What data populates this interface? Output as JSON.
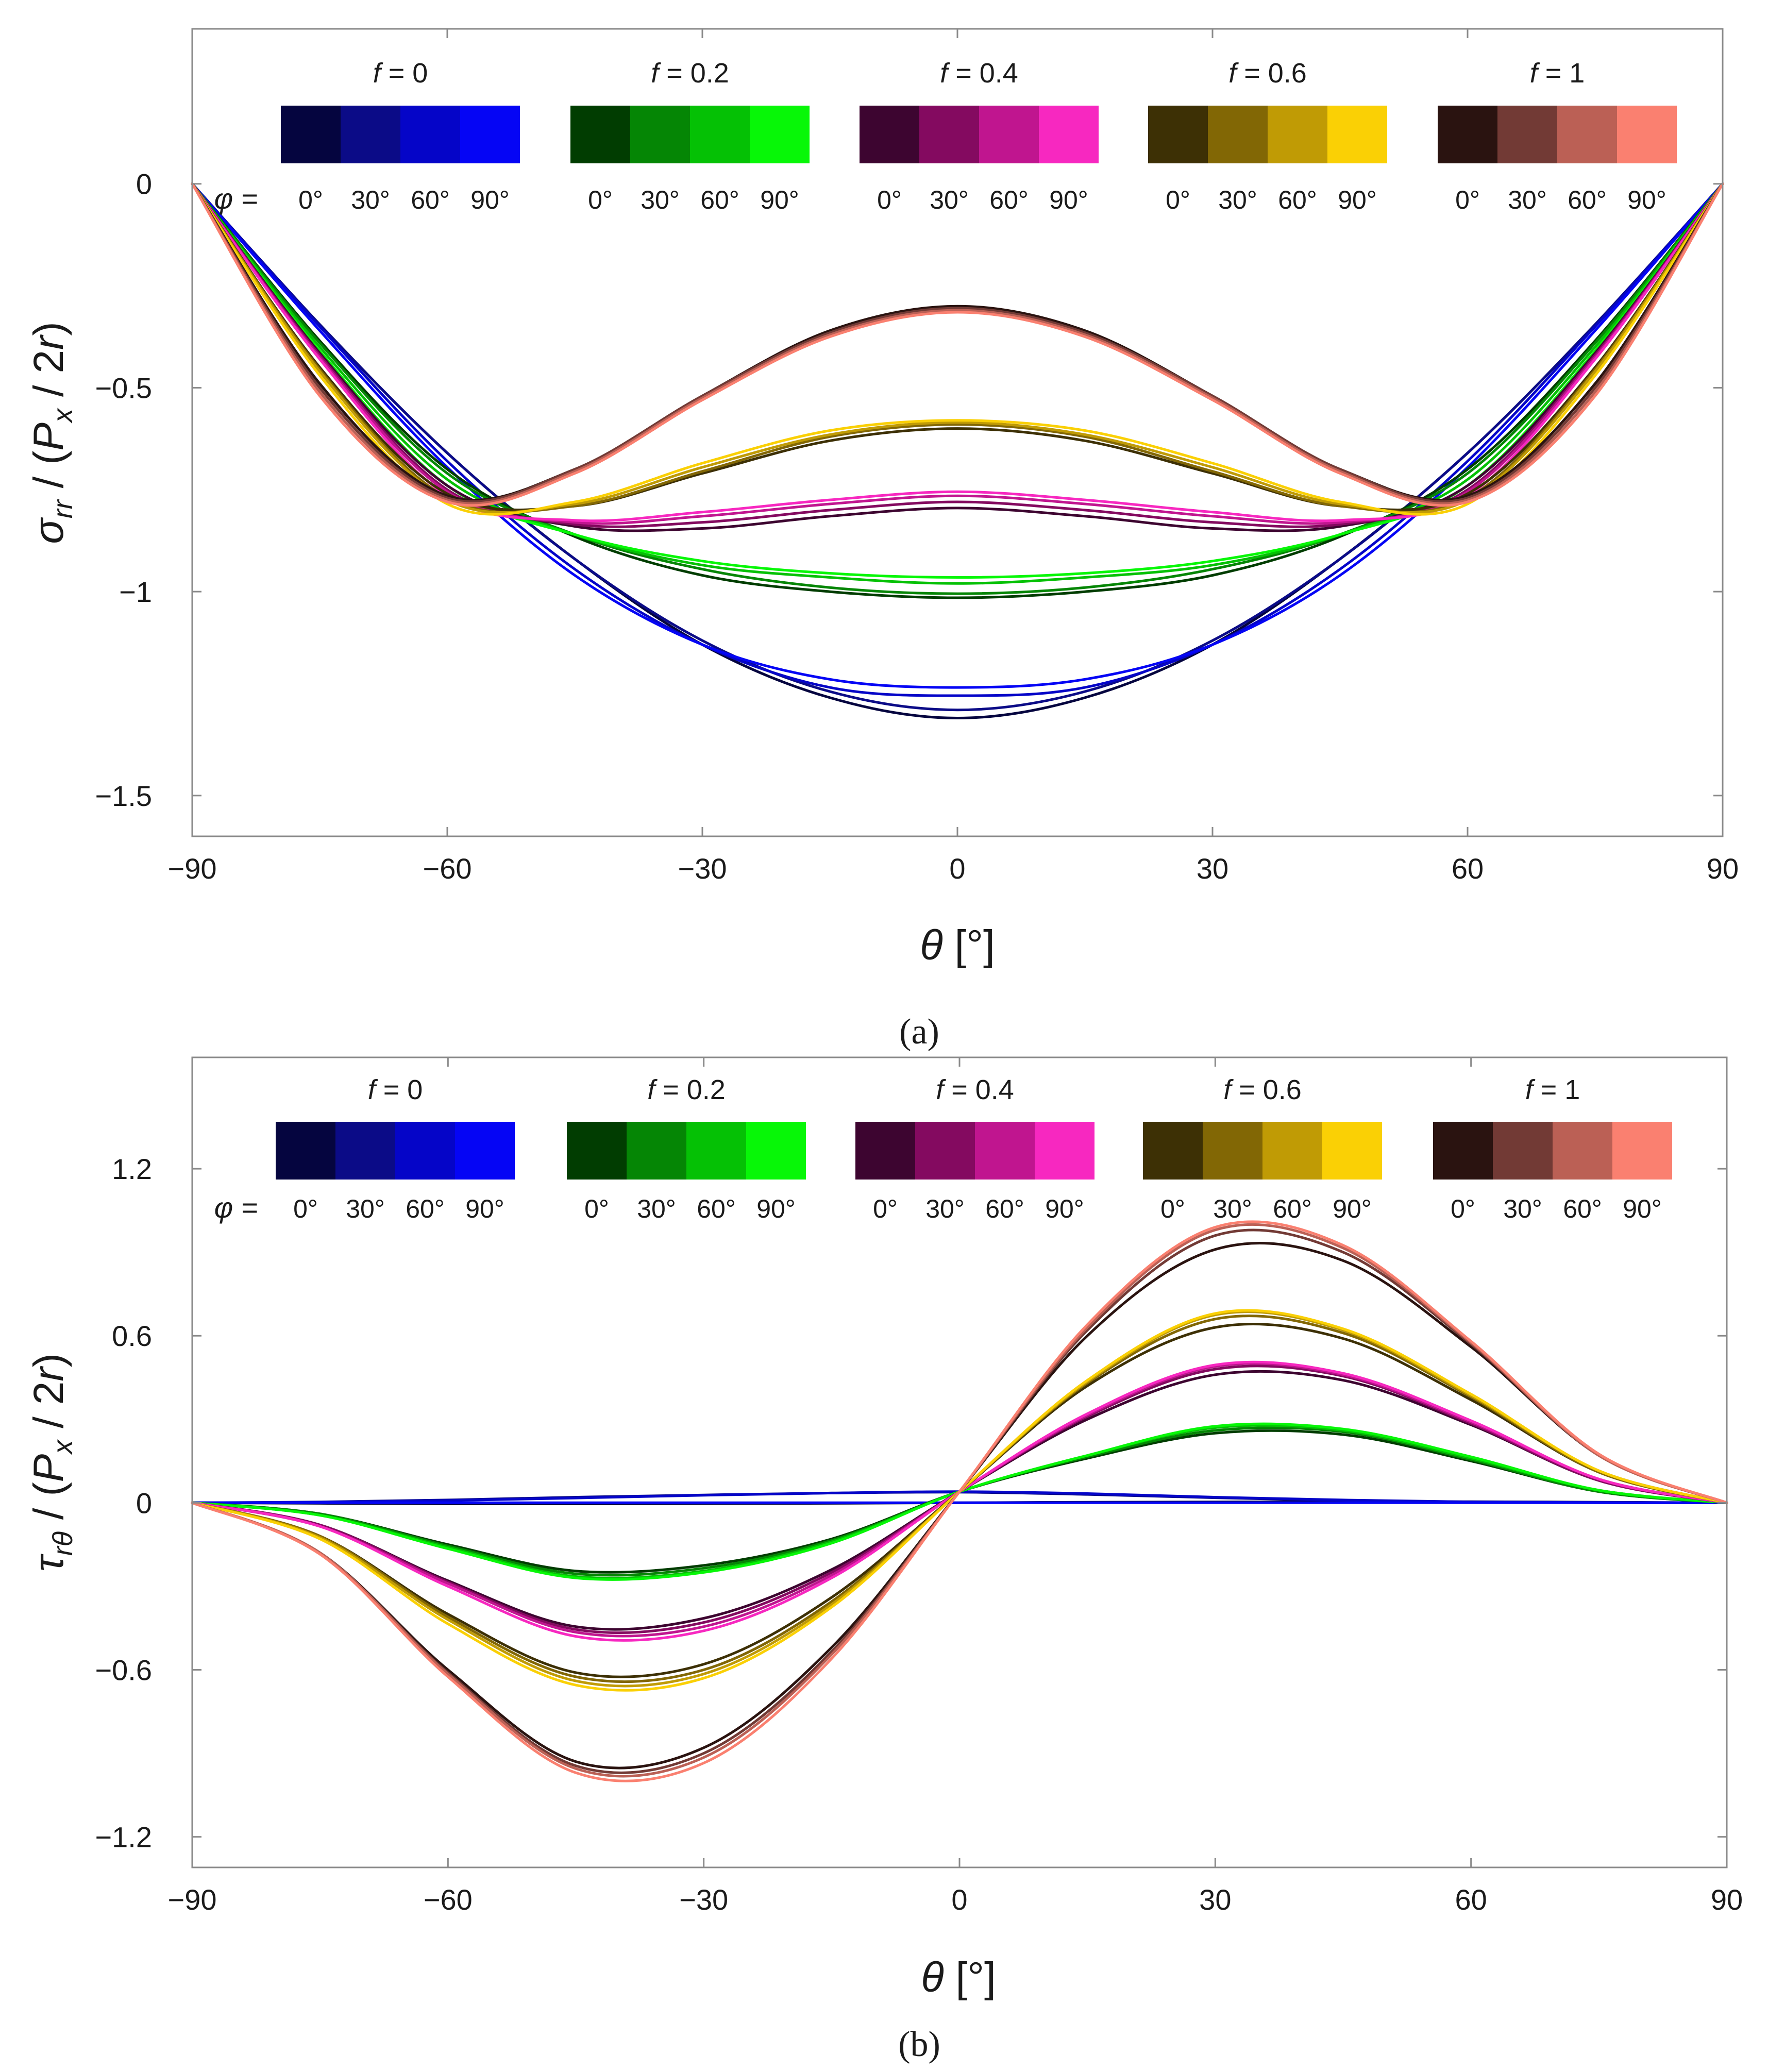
{
  "chart_data": [
    {
      "type": "line",
      "panel_label": "(a)",
      "xlabel": "θ [°]",
      "ylabel": "σ_rr / (P_x / 2r)",
      "xlim": [
        -90,
        90
      ],
      "ylim": [
        -1.6,
        0.38
      ],
      "xticks": [
        -90,
        -60,
        -30,
        0,
        30,
        60,
        90
      ],
      "xtick_labels": [
        "−90",
        "−60",
        "−30",
        "0",
        "30",
        "60",
        "90"
      ],
      "yticks": [
        0,
        -0.5,
        -1,
        -1.5
      ],
      "ytick_labels": [
        "0",
        "−0.5",
        "−1",
        "−1.5"
      ],
      "legend": {
        "phi_prefix": "φ =",
        "groups": [
          {
            "label": "f = 0",
            "colors": [
              "#05053f",
              "#0b0b87",
              "#0505c8",
              "#0505f5"
            ],
            "phi_labels": [
              "0°",
              "30°",
              "60°",
              "90°"
            ]
          },
          {
            "label": "f = 0.2",
            "colors": [
              "#013d01",
              "#058605",
              "#05c105",
              "#07f707"
            ],
            "phi_labels": [
              "0°",
              "30°",
              "60°",
              "90°"
            ]
          },
          {
            "label": "f = 0.4",
            "colors": [
              "#3d0530",
              "#840a60",
              "#c0158f",
              "#f728c0"
            ],
            "phi_labels": [
              "0°",
              "30°",
              "60°",
              "90°"
            ]
          },
          {
            "label": "f = 0.6",
            "colors": [
              "#3d3005",
              "#826705",
              "#c09b05",
              "#fad005"
            ],
            "phi_labels": [
              "0°",
              "30°",
              "60°",
              "90°"
            ]
          },
          {
            "label": "f = 1",
            "colors": [
              "#2a1310",
              "#723a35",
              "#bb6055",
              "#fa8070"
            ],
            "phi_labels": [
              "0°",
              "30°",
              "60°",
              "90°"
            ]
          }
        ]
      },
      "series": [
        {
          "name": "f=0, φ=0°",
          "color": "#05053f",
          "values": [
            0,
            -0.345,
            -0.66,
            -0.92,
            -1.13,
            -1.26,
            -1.31,
            -1.26,
            -1.13,
            -0.92,
            -0.66,
            -0.345,
            0
          ]
        },
        {
          "name": "f=0, φ=30°",
          "color": "#0b0b87",
          "values": [
            0,
            -0.345,
            -0.66,
            -0.92,
            -1.12,
            -1.245,
            -1.29,
            -1.245,
            -1.12,
            -0.92,
            -0.66,
            -0.345,
            0
          ]
        },
        {
          "name": "f=0, φ=60°",
          "color": "#0505c8",
          "values": [
            0,
            -0.35,
            -0.68,
            -0.945,
            -1.13,
            -1.235,
            -1.255,
            -1.235,
            -1.13,
            -0.945,
            -0.68,
            -0.35,
            0
          ]
        },
        {
          "name": "f=0, φ=90°",
          "color": "#0505f5",
          "values": [
            0,
            -0.36,
            -0.695,
            -0.96,
            -1.13,
            -1.215,
            -1.235,
            -1.215,
            -1.13,
            -0.96,
            -0.695,
            -0.36,
            0
          ]
        },
        {
          "name": "f=0.2, φ=0°",
          "color": "#013d01",
          "values": [
            0,
            -0.385,
            -0.7,
            -0.865,
            -0.96,
            -1.0,
            -1.015,
            -1.0,
            -0.96,
            -0.865,
            -0.7,
            -0.385,
            0
          ]
        },
        {
          "name": "f=0.2, φ=30°",
          "color": "#058605",
          "values": [
            0,
            -0.39,
            -0.71,
            -0.86,
            -0.945,
            -0.99,
            -1.005,
            -0.99,
            -0.945,
            -0.86,
            -0.71,
            -0.39,
            0
          ]
        },
        {
          "name": "f=0.2, φ=60°",
          "color": "#05c105",
          "values": [
            0,
            -0.4,
            -0.725,
            -0.86,
            -0.935,
            -0.965,
            -0.98,
            -0.965,
            -0.935,
            -0.86,
            -0.725,
            -0.4,
            0
          ]
        },
        {
          "name": "f=0.2, φ=90°",
          "color": "#07f707",
          "values": [
            0,
            -0.41,
            -0.74,
            -0.86,
            -0.925,
            -0.955,
            -0.965,
            -0.955,
            -0.925,
            -0.86,
            -0.74,
            -0.41,
            0
          ]
        },
        {
          "name": "f=0.4, φ=0°",
          "color": "#3d0530",
          "values": [
            0,
            -0.415,
            -0.74,
            -0.84,
            -0.845,
            -0.815,
            -0.795,
            -0.815,
            -0.845,
            -0.84,
            -0.74,
            -0.415,
            0
          ]
        },
        {
          "name": "f=0.4, φ=30°",
          "color": "#840a60",
          "values": [
            0,
            -0.42,
            -0.75,
            -0.835,
            -0.83,
            -0.8,
            -0.78,
            -0.8,
            -0.83,
            -0.835,
            -0.75,
            -0.42,
            0
          ]
        },
        {
          "name": "f=0.4, φ=60°",
          "color": "#c0158f",
          "values": [
            0,
            -0.425,
            -0.755,
            -0.83,
            -0.815,
            -0.785,
            -0.765,
            -0.785,
            -0.815,
            -0.83,
            -0.755,
            -0.425,
            0
          ]
        },
        {
          "name": "f=0.4, φ=90°",
          "color": "#f728c0",
          "values": [
            0,
            -0.43,
            -0.765,
            -0.825,
            -0.805,
            -0.775,
            -0.755,
            -0.775,
            -0.805,
            -0.825,
            -0.765,
            -0.43,
            0
          ]
        },
        {
          "name": "f=0.6, φ=0°",
          "color": "#3d3005",
          "values": [
            0,
            -0.45,
            -0.76,
            -0.79,
            -0.71,
            -0.63,
            -0.6,
            -0.63,
            -0.71,
            -0.79,
            -0.76,
            -0.45,
            0
          ]
        },
        {
          "name": "f=0.6, φ=30°",
          "color": "#826705",
          "values": [
            0,
            -0.455,
            -0.77,
            -0.79,
            -0.705,
            -0.62,
            -0.59,
            -0.62,
            -0.705,
            -0.79,
            -0.77,
            -0.455,
            0
          ]
        },
        {
          "name": "f=0.6, φ=60°",
          "color": "#c09b05",
          "values": [
            0,
            -0.46,
            -0.775,
            -0.785,
            -0.695,
            -0.615,
            -0.585,
            -0.615,
            -0.695,
            -0.785,
            -0.775,
            -0.46,
            0
          ]
        },
        {
          "name": "f=0.6, φ=90°",
          "color": "#fad005",
          "values": [
            0,
            -0.47,
            -0.785,
            -0.78,
            -0.685,
            -0.605,
            -0.58,
            -0.605,
            -0.685,
            -0.78,
            -0.785,
            -0.47,
            0
          ]
        },
        {
          "name": "f=1, φ=0°",
          "color": "#2a1310",
          "values": [
            0,
            -0.49,
            -0.765,
            -0.7,
            -0.52,
            -0.36,
            -0.3,
            -0.36,
            -0.52,
            -0.7,
            -0.765,
            -0.49,
            0
          ]
        },
        {
          "name": "f=1, φ=30°",
          "color": "#723a35",
          "values": [
            0,
            -0.5,
            -0.77,
            -0.7,
            -0.52,
            -0.365,
            -0.305,
            -0.365,
            -0.52,
            -0.7,
            -0.77,
            -0.5,
            0
          ]
        },
        {
          "name": "f=1, φ=60°",
          "color": "#bb6055",
          "values": [
            0,
            -0.51,
            -0.775,
            -0.705,
            -0.525,
            -0.37,
            -0.31,
            -0.37,
            -0.525,
            -0.705,
            -0.775,
            -0.51,
            0
          ]
        },
        {
          "name": "f=1, φ=90°",
          "color": "#fa8070",
          "values": [
            0,
            -0.52,
            -0.78,
            -0.71,
            -0.53,
            -0.375,
            -0.315,
            -0.375,
            -0.53,
            -0.71,
            -0.78,
            -0.52,
            0
          ]
        }
      ],
      "x": [
        -90,
        -75,
        -60,
        -45,
        -30,
        -15,
        0,
        15,
        30,
        45,
        60,
        75,
        90
      ]
    },
    {
      "type": "line",
      "panel_label": "(b)",
      "xlabel": "θ [°]",
      "ylabel": "τ_rθ / (P_x / 2r)",
      "xlim": [
        -90,
        90
      ],
      "ylim": [
        -1.31,
        1.6
      ],
      "xticks": [
        -90,
        -60,
        -30,
        0,
        30,
        60,
        90
      ],
      "xtick_labels": [
        "−90",
        "−60",
        "−30",
        "0",
        "30",
        "60",
        "90"
      ],
      "yticks": [
        1.2,
        0.6,
        0,
        -0.6,
        -1.2
      ],
      "ytick_labels": [
        "1.2",
        "0.6",
        "0",
        "−0.6",
        "−1.2"
      ],
      "legend": {
        "phi_prefix": "φ =",
        "groups": [
          {
            "label": "f = 0",
            "colors": [
              "#05053f",
              "#0b0b87",
              "#0505c8",
              "#0505f5"
            ],
            "phi_labels": [
              "0°",
              "30°",
              "60°",
              "90°"
            ]
          },
          {
            "label": "f = 0.2",
            "colors": [
              "#013d01",
              "#058605",
              "#05c105",
              "#07f707"
            ],
            "phi_labels": [
              "0°",
              "30°",
              "60°",
              "90°"
            ]
          },
          {
            "label": "f = 0.4",
            "colors": [
              "#3d0530",
              "#840a60",
              "#c0158f",
              "#f728c0"
            ],
            "phi_labels": [
              "0°",
              "30°",
              "60°",
              "90°"
            ]
          },
          {
            "label": "f = 0.6",
            "colors": [
              "#3d3005",
              "#826705",
              "#c09b05",
              "#fad005"
            ],
            "phi_labels": [
              "0°",
              "30°",
              "60°",
              "90°"
            ]
          },
          {
            "label": "f = 1",
            "colors": [
              "#2a1310",
              "#723a35",
              "#bb6055",
              "#fa8070"
            ],
            "phi_labels": [
              "0°",
              "30°",
              "60°",
              "90°"
            ]
          }
        ]
      },
      "x": [
        -90,
        -75,
        -60,
        -45,
        -30,
        -15,
        0,
        15,
        30,
        45,
        60,
        75,
        90
      ],
      "series": [
        {
          "name": "f=0, φ=0°",
          "color": "#05053f",
          "values": [
            0,
            -0.002,
            -0.004,
            -0.004,
            -0.003,
            -0.002,
            0,
            0.002,
            0.003,
            0.004,
            0.004,
            0.002,
            0
          ]
        },
        {
          "name": "f=0, φ=30°",
          "color": "#0b0b87",
          "values": [
            0,
            0.003,
            0.01,
            0.02,
            0.028,
            0.035,
            0.038,
            0.03,
            0.018,
            0.008,
            0.002,
            0,
            0
          ]
        },
        {
          "name": "f=0, φ=60°",
          "color": "#0505c8",
          "values": [
            0,
            0.002,
            0.008,
            0.017,
            0.027,
            0.035,
            0.04,
            0.033,
            0.02,
            0.01,
            0.003,
            0.001,
            0
          ]
        },
        {
          "name": "f=0, φ=90°",
          "color": "#0505f5",
          "values": [
            0,
            0,
            0,
            0,
            0,
            0,
            0,
            0,
            0,
            0,
            0,
            0,
            0
          ]
        },
        {
          "name": "f=0.2, φ=0°",
          "color": "#013d01",
          "values": [
            0,
            -0.04,
            -0.15,
            -0.245,
            -0.225,
            -0.13,
            0.04,
            0.16,
            0.25,
            0.245,
            0.15,
            0.04,
            0
          ]
        },
        {
          "name": "f=0.2, φ=30°",
          "color": "#058605",
          "values": [
            0,
            -0.04,
            -0.155,
            -0.255,
            -0.235,
            -0.135,
            0.04,
            0.165,
            0.26,
            0.255,
            0.155,
            0.04,
            0
          ]
        },
        {
          "name": "f=0.2, φ=60°",
          "color": "#05c105",
          "values": [
            0,
            -0.045,
            -0.16,
            -0.265,
            -0.245,
            -0.14,
            0.04,
            0.17,
            0.27,
            0.26,
            0.16,
            0.045,
            0
          ]
        },
        {
          "name": "f=0.2, φ=90°",
          "color": "#07f707",
          "values": [
            0,
            -0.045,
            -0.165,
            -0.27,
            -0.25,
            -0.145,
            0.04,
            0.17,
            0.275,
            0.265,
            0.165,
            0.045,
            0
          ]
        },
        {
          "name": "f=0.4, φ=0°",
          "color": "#3d0530",
          "values": [
            0,
            -0.08,
            -0.28,
            -0.445,
            -0.415,
            -0.24,
            0.04,
            0.3,
            0.46,
            0.44,
            0.28,
            0.08,
            0
          ]
        },
        {
          "name": "f=0.4, φ=30°",
          "color": "#840a60",
          "values": [
            0,
            -0.08,
            -0.285,
            -0.455,
            -0.43,
            -0.25,
            0.04,
            0.31,
            0.48,
            0.455,
            0.285,
            0.08,
            0
          ]
        },
        {
          "name": "f=0.4, φ=60°",
          "color": "#c0158f",
          "values": [
            0,
            -0.085,
            -0.29,
            -0.465,
            -0.445,
            -0.26,
            0.04,
            0.315,
            0.49,
            0.46,
            0.29,
            0.085,
            0
          ]
        },
        {
          "name": "f=0.4, φ=90°",
          "color": "#f728c0",
          "values": [
            0,
            -0.085,
            -0.3,
            -0.48,
            -0.46,
            -0.27,
            0.04,
            0.32,
            0.495,
            0.465,
            0.295,
            0.085,
            0
          ]
        },
        {
          "name": "f=0.6, φ=0°",
          "color": "#3d3005",
          "values": [
            0,
            -0.12,
            -0.4,
            -0.61,
            -0.58,
            -0.34,
            0.04,
            0.42,
            0.63,
            0.59,
            0.37,
            0.11,
            0
          ]
        },
        {
          "name": "f=0.6, φ=30°",
          "color": "#826705",
          "values": [
            0,
            -0.12,
            -0.41,
            -0.625,
            -0.6,
            -0.355,
            0.04,
            0.43,
            0.66,
            0.61,
            0.38,
            0.11,
            0
          ]
        },
        {
          "name": "f=0.6, φ=60°",
          "color": "#c09b05",
          "values": [
            0,
            -0.125,
            -0.42,
            -0.64,
            -0.615,
            -0.365,
            0.04,
            0.435,
            0.675,
            0.62,
            0.385,
            0.115,
            0
          ]
        },
        {
          "name": "f=0.6, φ=90°",
          "color": "#fad005",
          "values": [
            0,
            -0.13,
            -0.435,
            -0.655,
            -0.63,
            -0.375,
            0.04,
            0.44,
            0.68,
            0.625,
            0.39,
            0.115,
            0
          ]
        },
        {
          "name": "f=1, φ=0°",
          "color": "#2a1310",
          "values": [
            0,
            -0.18,
            -0.6,
            -0.93,
            -0.88,
            -0.52,
            0.04,
            0.6,
            0.91,
            0.87,
            0.56,
            0.17,
            0
          ]
        },
        {
          "name": "f=1, φ=30°",
          "color": "#723a35",
          "values": [
            0,
            -0.18,
            -0.61,
            -0.945,
            -0.9,
            -0.535,
            0.04,
            0.62,
            0.96,
            0.9,
            0.57,
            0.17,
            0
          ]
        },
        {
          "name": "f=1, φ=60°",
          "color": "#bb6055",
          "values": [
            0,
            -0.18,
            -0.615,
            -0.955,
            -0.915,
            -0.545,
            0.04,
            0.63,
            0.98,
            0.915,
            0.575,
            0.17,
            0
          ]
        },
        {
          "name": "f=1, φ=90°",
          "color": "#fa8070",
          "values": [
            0,
            -0.185,
            -0.625,
            -0.97,
            -0.935,
            -0.56,
            0.04,
            0.64,
            0.99,
            0.925,
            0.58,
            0.175,
            0
          ]
        }
      ]
    }
  ]
}
